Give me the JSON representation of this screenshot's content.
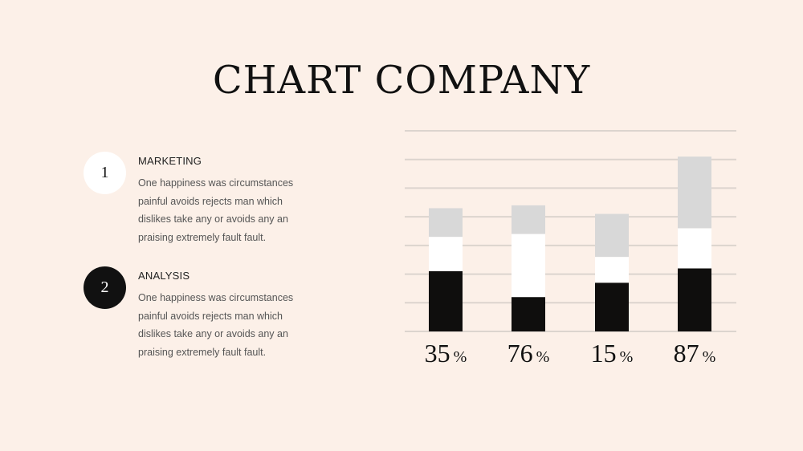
{
  "slide": {
    "title": "CHART COMPANY",
    "items": [
      {
        "number": "1",
        "heading": "MARKETING",
        "text": "One happiness was circumstances painful avoids rejects man which dislikes take any or avoids any an praising extremely fault fault."
      },
      {
        "number": "2",
        "heading": "ANALYSIS",
        "text": "One happiness was circumstances painful avoids rejects man which dislikes take any or avoids any an praising extremely fault fault."
      }
    ]
  },
  "colors": {
    "background": "#fcf0e8",
    "segment_dark": "#0f0e0d",
    "segment_white": "#ffffff",
    "segment_gray": "#d8d8d8",
    "gridline": "#dcd4ce"
  },
  "chart_data": {
    "type": "bar",
    "stacked": true,
    "categories": [
      "35",
      "76",
      "15",
      "87"
    ],
    "unit": "%",
    "gridlines": 8,
    "ylim": [
      0,
      7
    ],
    "series": [
      {
        "values": [
          2.1,
          1.2,
          1.7,
          2.2
        ]
      },
      {
        "values": [
          1.2,
          2.2,
          0.9,
          1.4
        ]
      },
      {
        "values": [
          1.0,
          1.0,
          1.5,
          2.5
        ]
      }
    ]
  }
}
